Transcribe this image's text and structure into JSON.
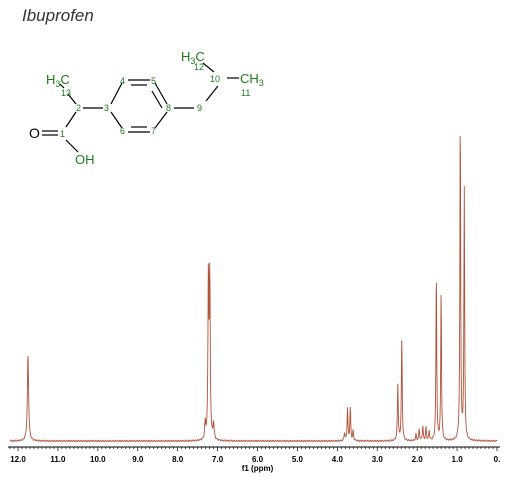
{
  "title": "Ibuprofen",
  "molecule": {
    "colors": {
      "bond": "#000000",
      "label": "#1e7a1e",
      "oxygen": "#000000"
    },
    "atoms": {
      "h3c_top": "H3C",
      "c12": "12",
      "c10": "10",
      "ch3_right": "CH3",
      "c11": "11",
      "h3c_left": "H3C",
      "c13": "13",
      "c2": "2",
      "c3": "3",
      "c4": "4",
      "c5": "5",
      "c6": "6",
      "c7": "7",
      "c8": "8",
      "c9": "9",
      "o_double": "O",
      "c1": "1",
      "oh": "OH"
    }
  },
  "chart_data": {
    "type": "line",
    "xlabel": "f1 (ppm)",
    "x_reversed": true,
    "xlim": [
      12.2,
      0.0
    ],
    "x_ticks": [
      {
        "value": 12.0,
        "label": "12.0"
      },
      {
        "value": 11.0,
        "label": "11.0"
      },
      {
        "value": 10.0,
        "label": "10.0"
      },
      {
        "value": 9.0,
        "label": "9.0"
      },
      {
        "value": 8.0,
        "label": "8.0"
      },
      {
        "value": 7.0,
        "label": "7.0"
      },
      {
        "value": 6.0,
        "label": "6.0"
      },
      {
        "value": 5.0,
        "label": "5.0"
      },
      {
        "value": 4.0,
        "label": "4.0"
      },
      {
        "value": 3.0,
        "label": "3.0"
      },
      {
        "value": 2.0,
        "label": "2.0"
      },
      {
        "value": 1.0,
        "label": "1.0"
      },
      {
        "value": 0.0,
        "label": "0."
      }
    ],
    "line_color": "#b0523a",
    "axis_color": "#000000",
    "ylim": [
      0,
      1.0
    ],
    "peaks": [
      {
        "ppm": 11.75,
        "height": 0.26,
        "width": 0.018
      },
      {
        "ppm": 7.31,
        "height": 0.05,
        "width": 0.015
      },
      {
        "ppm": 7.23,
        "height": 0.5,
        "width": 0.013
      },
      {
        "ppm": 7.195,
        "height": 0.48,
        "width": 0.013
      },
      {
        "ppm": 7.1,
        "height": 0.05,
        "width": 0.015
      },
      {
        "ppm": 3.82,
        "height": 0.025,
        "width": 0.012
      },
      {
        "ppm": 3.745,
        "height": 0.1,
        "width": 0.012
      },
      {
        "ppm": 3.675,
        "height": 0.1,
        "width": 0.012
      },
      {
        "ppm": 3.605,
        "height": 0.03,
        "width": 0.012
      },
      {
        "ppm": 2.485,
        "height": 0.17,
        "width": 0.012
      },
      {
        "ppm": 2.385,
        "height": 0.31,
        "width": 0.012
      },
      {
        "ppm": 2.03,
        "height": 0.02,
        "width": 0.012
      },
      {
        "ppm": 1.95,
        "height": 0.035,
        "width": 0.012
      },
      {
        "ppm": 1.86,
        "height": 0.045,
        "width": 0.012
      },
      {
        "ppm": 1.78,
        "height": 0.04,
        "width": 0.012
      },
      {
        "ppm": 1.7,
        "height": 0.03,
        "width": 0.012
      },
      {
        "ppm": 1.52,
        "height": 0.52,
        "width": 0.011
      },
      {
        "ppm": 1.4,
        "height": 0.46,
        "width": 0.011
      },
      {
        "ppm": 0.92,
        "height": 1.0,
        "width": 0.011
      },
      {
        "ppm": 0.82,
        "height": 0.75,
        "width": 0.011
      }
    ]
  }
}
